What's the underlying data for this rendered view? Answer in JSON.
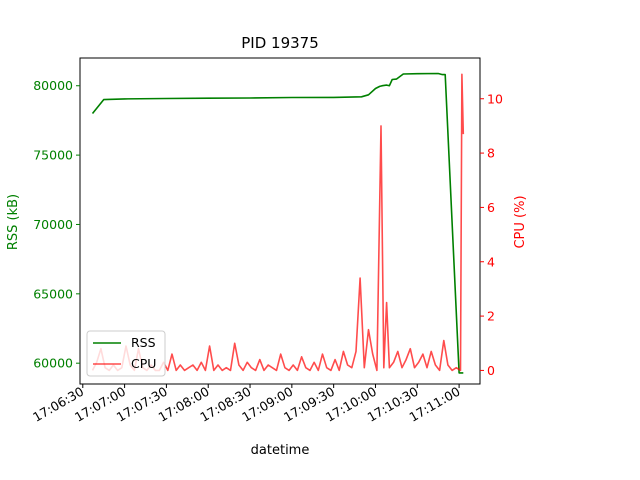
{
  "chart_data": {
    "type": "line",
    "title": "PID 19375",
    "xlabel": "datetime",
    "ylabel_left": "RSS (kB)",
    "ylabel_right": "CPU (%)",
    "x_ticks": [
      "17:06:30",
      "17:07:00",
      "17:07:30",
      "17:08:00",
      "17:08:30",
      "17:09:00",
      "17:09:30",
      "17:10:00",
      "17:10:30",
      "17:11:00"
    ],
    "xlim": [
      "17:06:28",
      "17:11:15"
    ],
    "ylim_left": [
      58500,
      82000
    ],
    "y_ticks_left": [
      "60000",
      "65000",
      "70000",
      "75000",
      "80000"
    ],
    "ylim_right": [
      -0.5,
      11.5
    ],
    "y_ticks_right": [
      "0",
      "2",
      "4",
      "6",
      "8",
      "10"
    ],
    "legend": {
      "placement": "lower-left",
      "entries": [
        "RSS",
        "CPU"
      ]
    },
    "colors": {
      "rss": "#008000",
      "cpu": "#ff0000",
      "left_axis": "#008000",
      "right_axis": "#ff0000"
    },
    "series": [
      {
        "name": "RSS",
        "axis": "left",
        "x": [
          "17:06:37",
          "17:06:45",
          "17:07:00",
          "17:07:30",
          "17:08:00",
          "17:08:30",
          "17:09:00",
          "17:09:30",
          "17:09:50",
          "17:09:55",
          "17:10:00",
          "17:10:03",
          "17:10:05",
          "17:10:08",
          "17:10:10",
          "17:10:12",
          "17:10:15",
          "17:10:20",
          "17:10:30",
          "17:10:45",
          "17:10:48",
          "17:10:50",
          "17:11:00",
          "17:11:02",
          "17:11:03"
        ],
        "y": [
          78000,
          79000,
          79050,
          79080,
          79100,
          79120,
          79150,
          79160,
          79200,
          79350,
          79800,
          79950,
          80000,
          80050,
          80000,
          80450,
          80480,
          80850,
          80870,
          80880,
          80800,
          80800,
          59300,
          59300,
          59300
        ]
      },
      {
        "name": "CPU",
        "axis": "right",
        "x": [
          "17:06:37",
          "17:06:40",
          "17:06:43",
          "17:06:46",
          "17:06:49",
          "17:06:52",
          "17:06:55",
          "17:06:58",
          "17:07:01",
          "17:07:04",
          "17:07:07",
          "17:07:10",
          "17:07:13",
          "17:07:16",
          "17:07:19",
          "17:07:22",
          "17:07:25",
          "17:07:28",
          "17:07:31",
          "17:07:34",
          "17:07:37",
          "17:07:40",
          "17:07:43",
          "17:07:46",
          "17:07:49",
          "17:07:52",
          "17:07:55",
          "17:07:58",
          "17:08:01",
          "17:08:04",
          "17:08:07",
          "17:08:10",
          "17:08:13",
          "17:08:16",
          "17:08:19",
          "17:08:22",
          "17:08:25",
          "17:08:28",
          "17:08:31",
          "17:08:34",
          "17:08:37",
          "17:08:40",
          "17:08:43",
          "17:08:46",
          "17:08:49",
          "17:08:52",
          "17:08:55",
          "17:08:58",
          "17:09:01",
          "17:09:04",
          "17:09:07",
          "17:09:10",
          "17:09:13",
          "17:09:16",
          "17:09:19",
          "17:09:22",
          "17:09:25",
          "17:09:28",
          "17:09:31",
          "17:09:34",
          "17:09:37",
          "17:09:40",
          "17:09:43",
          "17:09:46",
          "17:09:49",
          "17:09:52",
          "17:09:55",
          "17:09:58",
          "17:10:01",
          "17:10:04",
          "17:10:06",
          "17:10:08",
          "17:10:10",
          "17:10:13",
          "17:10:16",
          "17:10:19",
          "17:10:22",
          "17:10:25",
          "17:10:28",
          "17:10:31",
          "17:10:34",
          "17:10:37",
          "17:10:40",
          "17:10:43",
          "17:10:46",
          "17:10:49",
          "17:10:52",
          "17:10:55",
          "17:10:58",
          "17:11:01",
          "17:11:02",
          "17:11:03"
        ],
        "y": [
          0.0,
          0.3,
          0.8,
          0.1,
          0.0,
          0.2,
          0.0,
          0.1,
          0.9,
          0.2,
          0.0,
          0.8,
          0.1,
          0.0,
          0.2,
          0.0,
          0.0,
          0.3,
          0.0,
          0.6,
          0.0,
          0.2,
          0.0,
          0.1,
          0.2,
          0.0,
          0.3,
          0.0,
          0.9,
          0.0,
          0.2,
          0.0,
          0.1,
          0.0,
          1.0,
          0.2,
          0.0,
          0.3,
          0.1,
          0.0,
          0.4,
          0.0,
          0.2,
          0.1,
          0.0,
          0.6,
          0.1,
          0.0,
          0.2,
          0.0,
          0.5,
          0.1,
          0.0,
          0.3,
          0.0,
          0.6,
          0.1,
          0.0,
          0.4,
          0.0,
          0.7,
          0.2,
          0.1,
          0.7,
          3.4,
          0.1,
          1.5,
          0.6,
          0.0,
          9.0,
          0.1,
          2.5,
          0.1,
          0.3,
          0.7,
          0.1,
          0.4,
          0.8,
          0.1,
          0.3,
          0.6,
          0.1,
          0.7,
          0.2,
          0.0,
          1.1,
          0.2,
          0.0,
          0.1,
          0.0,
          10.9,
          8.7
        ]
      }
    ]
  }
}
